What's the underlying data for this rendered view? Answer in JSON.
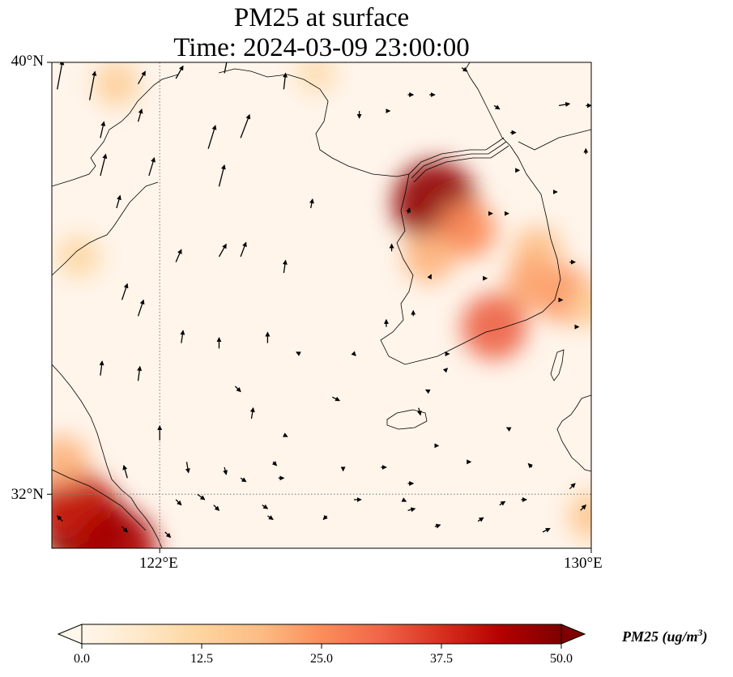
{
  "title": {
    "line1": "PM25 at surface",
    "line2": "Time: 2024-03-09 23:00:00"
  },
  "map": {
    "extent": {
      "lon": [
        120.0,
        130.0
      ],
      "lat": [
        31.0,
        40.0
      ]
    },
    "gridlines": {
      "style": "dotted",
      "lons": [
        122
      ],
      "lats": [
        32
      ]
    },
    "lat_ticks": [
      {
        "value": 40,
        "label": "40°N"
      },
      {
        "value": 32,
        "label": "32°N"
      }
    ],
    "lon_ticks": [
      {
        "value": 122,
        "label": "122°E"
      },
      {
        "value": 130,
        "label": "130°E"
      }
    ],
    "background_color": "#fff5eb",
    "coastline_color": "#000000",
    "hotspots": [
      {
        "lon": 127.1,
        "lat": 37.4,
        "value": 48
      },
      {
        "lon": 127.7,
        "lat": 36.9,
        "value": 25
      },
      {
        "lon": 127.0,
        "lat": 36.4,
        "value": 20
      },
      {
        "lon": 128.2,
        "lat": 35.1,
        "value": 32
      },
      {
        "lon": 129.5,
        "lat": 35.7,
        "value": 24
      },
      {
        "lon": 129.0,
        "lat": 36.5,
        "value": 18
      },
      {
        "lon": 128.9,
        "lat": 35.9,
        "value": 22
      },
      {
        "lon": 121.2,
        "lat": 39.6,
        "value": 14
      },
      {
        "lon": 120.5,
        "lat": 36.4,
        "value": 12
      },
      {
        "lon": 120.6,
        "lat": 31.4,
        "value": 52
      },
      {
        "lon": 120.4,
        "lat": 31.8,
        "value": 40
      },
      {
        "lon": 121.2,
        "lat": 31.0,
        "value": 45
      },
      {
        "lon": 120.2,
        "lat": 32.6,
        "value": 20
      },
      {
        "lon": 130.0,
        "lat": 31.6,
        "value": 16
      },
      {
        "lon": 130.0,
        "lat": 35.5,
        "value": 14
      },
      {
        "lon": 124.9,
        "lat": 39.8,
        "value": 10
      }
    ],
    "wind_vectors": [
      {
        "lon": 120.1,
        "lat": 39.5,
        "u": 0.3,
        "v": 1.6
      },
      {
        "lon": 120.7,
        "lat": 39.3,
        "u": 0.3,
        "v": 1.6
      },
      {
        "lon": 121.6,
        "lat": 39.6,
        "u": 0.4,
        "v": 0.7
      },
      {
        "lon": 122.3,
        "lat": 39.7,
        "u": 0.4,
        "v": 0.7
      },
      {
        "lon": 123.2,
        "lat": 39.8,
        "u": 0.2,
        "v": 1.0
      },
      {
        "lon": 120.9,
        "lat": 38.6,
        "u": 0.2,
        "v": 0.9
      },
      {
        "lon": 121.6,
        "lat": 38.9,
        "u": 0.2,
        "v": 0.7
      },
      {
        "lon": 122.9,
        "lat": 38.4,
        "u": 0.4,
        "v": 1.3
      },
      {
        "lon": 123.5,
        "lat": 38.6,
        "u": 0.5,
        "v": 1.3
      },
      {
        "lon": 124.3,
        "lat": 39.5,
        "u": 0.1,
        "v": 0.9
      },
      {
        "lon": 120.9,
        "lat": 37.9,
        "u": 0.3,
        "v": 1.2
      },
      {
        "lon": 121.8,
        "lat": 37.9,
        "u": 0.3,
        "v": 1.0
      },
      {
        "lon": 123.1,
        "lat": 37.7,
        "u": 0.3,
        "v": 1.2
      },
      {
        "lon": 121.2,
        "lat": 37.3,
        "u": 0.2,
        "v": 0.7
      },
      {
        "lon": 124.8,
        "lat": 37.3,
        "u": 0.1,
        "v": 0.5
      },
      {
        "lon": 123.1,
        "lat": 36.4,
        "u": 0.4,
        "v": 0.7
      },
      {
        "lon": 122.3,
        "lat": 36.3,
        "u": 0.3,
        "v": 0.7
      },
      {
        "lon": 123.5,
        "lat": 36.4,
        "u": 0.3,
        "v": 0.8
      },
      {
        "lon": 124.3,
        "lat": 36.1,
        "u": 0.1,
        "v": 0.7
      },
      {
        "lon": 121.3,
        "lat": 35.6,
        "u": 0.3,
        "v": 0.9
      },
      {
        "lon": 121.6,
        "lat": 35.3,
        "u": 0.3,
        "v": 0.9
      },
      {
        "lon": 122.4,
        "lat": 34.8,
        "u": 0.1,
        "v": 0.7
      },
      {
        "lon": 123.1,
        "lat": 34.7,
        "u": 0.0,
        "v": 0.6
      },
      {
        "lon": 124.0,
        "lat": 34.8,
        "u": 0.0,
        "v": 0.6
      },
      {
        "lon": 120.9,
        "lat": 34.2,
        "u": 0.1,
        "v": 0.8
      },
      {
        "lon": 121.6,
        "lat": 34.1,
        "u": 0.1,
        "v": 0.8
      },
      {
        "lon": 122.0,
        "lat": 33.0,
        "u": 0.0,
        "v": 0.8
      },
      {
        "lon": 122.5,
        "lat": 32.6,
        "u": 0.1,
        "v": -0.6
      },
      {
        "lon": 123.2,
        "lat": 32.5,
        "u": 0.1,
        "v": -0.4
      },
      {
        "lon": 122.3,
        "lat": 31.9,
        "u": 0.3,
        "v": -0.3
      },
      {
        "lon": 123.0,
        "lat": 31.8,
        "u": 0.3,
        "v": -0.3
      },
      {
        "lon": 123.9,
        "lat": 31.8,
        "u": 0.3,
        "v": -0.2
      },
      {
        "lon": 122.1,
        "lat": 31.3,
        "u": 0.3,
        "v": -0.3
      },
      {
        "lon": 121.3,
        "lat": 31.4,
        "u": 0.3,
        "v": -0.3
      },
      {
        "lon": 120.2,
        "lat": 31.5,
        "u": -0.3,
        "v": 0.3
      },
      {
        "lon": 121.4,
        "lat": 32.3,
        "u": -0.2,
        "v": 0.7
      },
      {
        "lon": 122.7,
        "lat": 32.0,
        "u": 0.4,
        "v": -0.3
      },
      {
        "lon": 123.5,
        "lat": 32.3,
        "u": 0.3,
        "v": -0.2
      },
      {
        "lon": 124.2,
        "lat": 32.3,
        "u": 0.3,
        "v": 0.0
      },
      {
        "lon": 125.6,
        "lat": 31.9,
        "u": 0.4,
        "v": 0.0
      },
      {
        "lon": 125.1,
        "lat": 31.6,
        "u": -0.2,
        "v": -0.2
      },
      {
        "lon": 124.0,
        "lat": 31.6,
        "u": 0.3,
        "v": -0.2
      },
      {
        "lon": 124.1,
        "lat": 32.6,
        "u": 0.2,
        "v": -0.2
      },
      {
        "lon": 125.4,
        "lat": 32.5,
        "u": 0.0,
        "v": -0.2
      },
      {
        "lon": 123.4,
        "lat": 34.0,
        "u": 0.3,
        "v": -0.3
      },
      {
        "lon": 123.7,
        "lat": 33.4,
        "u": 0.1,
        "v": 0.6
      },
      {
        "lon": 124.3,
        "lat": 33.1,
        "u": 0.2,
        "v": -0.1
      },
      {
        "lon": 125.2,
        "lat": 33.8,
        "u": 0.4,
        "v": -0.2
      },
      {
        "lon": 126.8,
        "lat": 33.6,
        "u": 0.1,
        "v": -0.4
      },
      {
        "lon": 126.1,
        "lat": 32.5,
        "u": 0.3,
        "v": 0.0
      },
      {
        "lon": 126.6,
        "lat": 32.2,
        "u": 0.3,
        "v": 0.0
      },
      {
        "lon": 127.1,
        "lat": 32.9,
        "u": 0.2,
        "v": 0.0
      },
      {
        "lon": 126.6,
        "lat": 31.7,
        "u": 0.4,
        "v": 0.1
      },
      {
        "lon": 127.1,
        "lat": 31.4,
        "u": 0.3,
        "v": 0.1
      },
      {
        "lon": 127.9,
        "lat": 31.5,
        "u": 0.3,
        "v": 0.2
      },
      {
        "lon": 128.3,
        "lat": 31.8,
        "u": 0.3,
        "v": 0.2
      },
      {
        "lon": 128.7,
        "lat": 31.9,
        "u": 0.3,
        "v": 0.0
      },
      {
        "lon": 129.1,
        "lat": 31.3,
        "u": 0.4,
        "v": 0.2
      },
      {
        "lon": 128.9,
        "lat": 32.5,
        "u": -0.2,
        "v": 0.2
      },
      {
        "lon": 128.5,
        "lat": 33.2,
        "u": -0.2,
        "v": 0.1
      },
      {
        "lon": 129.6,
        "lat": 32.1,
        "u": 0.3,
        "v": 0.3
      },
      {
        "lon": 129.8,
        "lat": 31.7,
        "u": 0.3,
        "v": 0.3
      },
      {
        "lon": 127.7,
        "lat": 32.6,
        "u": 0.2,
        "v": 0.0
      },
      {
        "lon": 126.5,
        "lat": 31.9,
        "u": 0.2,
        "v": -0.1
      },
      {
        "lon": 127.0,
        "lat": 33.9,
        "u": -0.2,
        "v": 0.1
      },
      {
        "lon": 125.6,
        "lat": 34.6,
        "u": 0.1,
        "v": -0.1
      },
      {
        "lon": 127.3,
        "lat": 34.6,
        "u": 0.2,
        "v": 0.0
      },
      {
        "lon": 124.6,
        "lat": 34.6,
        "u": -0.2,
        "v": 0.1
      },
      {
        "lon": 126.2,
        "lat": 39.1,
        "u": 0.2,
        "v": 0.0
      },
      {
        "lon": 125.7,
        "lat": 39.1,
        "u": 0.0,
        "v": -0.4
      },
      {
        "lon": 126.6,
        "lat": 37.2,
        "u": 0.1,
        "v": 0.3
      },
      {
        "lon": 126.3,
        "lat": 36.5,
        "u": 0.0,
        "v": 0.4
      },
      {
        "lon": 126.2,
        "lat": 35.1,
        "u": 0.0,
        "v": 0.4
      },
      {
        "lon": 126.7,
        "lat": 35.3,
        "u": 0.0,
        "v": 0.3
      },
      {
        "lon": 127.0,
        "lat": 36.0,
        "u": 0.1,
        "v": 0.2
      },
      {
        "lon": 127.3,
        "lat": 34.3,
        "u": 0.1,
        "v": 0.1
      },
      {
        "lon": 127.6,
        "lat": 39.9,
        "u": 0.3,
        "v": -0.2
      },
      {
        "lon": 126.6,
        "lat": 39.4,
        "u": 0.3,
        "v": 0.0
      },
      {
        "lon": 127.0,
        "lat": 39.4,
        "u": 0.3,
        "v": 0.0
      },
      {
        "lon": 128.2,
        "lat": 39.2,
        "u": 0.3,
        "v": -0.2
      },
      {
        "lon": 128.5,
        "lat": 38.7,
        "u": 0.3,
        "v": 0.0
      },
      {
        "lon": 129.4,
        "lat": 39.2,
        "u": 0.6,
        "v": 0.1
      },
      {
        "lon": 129.9,
        "lat": 39.2,
        "u": 0.3,
        "v": 0.0
      },
      {
        "lon": 128.4,
        "lat": 37.2,
        "u": 0.2,
        "v": 0.0
      },
      {
        "lon": 129.3,
        "lat": 37.6,
        "u": 0.2,
        "v": 0.0
      },
      {
        "lon": 129.6,
        "lat": 36.3,
        "u": 0.3,
        "v": 0.0
      },
      {
        "lon": 129.4,
        "lat": 35.6,
        "u": 0.2,
        "v": 0.0
      },
      {
        "lon": 129.7,
        "lat": 35.1,
        "u": 0.2,
        "v": 0.0
      },
      {
        "lon": 129.9,
        "lat": 38.3,
        "u": 0.0,
        "v": 0.3
      },
      {
        "lon": 128.6,
        "lat": 38.0,
        "u": 0.2,
        "v": 0.0
      },
      {
        "lon": 128.0,
        "lat": 36.0,
        "u": 0.2,
        "v": 0.0
      },
      {
        "lon": 128.1,
        "lat": 37.2,
        "u": 0.2,
        "v": 0.0
      }
    ]
  },
  "colorbar": {
    "label": "PM25 (ug/m",
    "label_superscript": "3",
    "label_suffix": ")",
    "ticks": [
      "0.0",
      "12.5",
      "25.0",
      "37.5",
      "50.0"
    ],
    "range": [
      0,
      50
    ],
    "colormap": "OrRd",
    "colormap_stops": [
      "#fff7ec",
      "#fee8c8",
      "#fdd49e",
      "#fdbb84",
      "#fc8d59",
      "#ef6548",
      "#d7301f",
      "#b30000",
      "#7f0000"
    ],
    "extend": "both"
  }
}
